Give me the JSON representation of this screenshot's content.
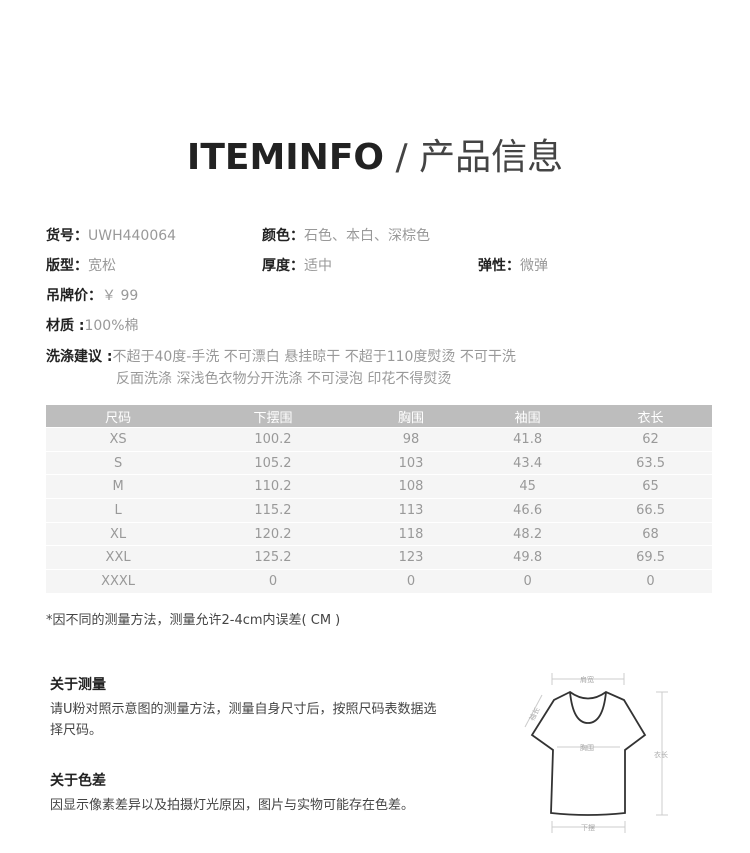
{
  "title": {
    "en": "ITEMINFO",
    "sep": "/",
    "cn": "产品信息"
  },
  "info": {
    "item_no": {
      "label": "货号：",
      "value": "UWH440064"
    },
    "color": {
      "label": "颜色：",
      "value": "石色、本白、深棕色"
    },
    "fit": {
      "label": "版型：",
      "value": "宽松"
    },
    "thickness": {
      "label": "厚度：",
      "value": "适中"
    },
    "elasticity": {
      "label": "弹性：",
      "value": "微弹"
    },
    "price": {
      "label": "吊牌价：",
      "value": "￥ 99"
    },
    "material": {
      "label": "材质 :",
      "value": "100%棉"
    },
    "wash": {
      "label": "洗涤建议 :",
      "line1": "不超于40度-手洗 不可漂白 悬挂晾干 不超于110度熨烫 不可干洗",
      "line2": "反面洗涤 深浅色衣物分开洗涤 不可浸泡 印花不得熨烫"
    }
  },
  "size_table": {
    "headers": [
      "尺码",
      "下摆围",
      "胸围",
      "袖围",
      "衣长"
    ],
    "rows": [
      [
        "XS",
        "100.2",
        "98",
        "41.8",
        "62"
      ],
      [
        "S",
        "105.2",
        "103",
        "43.4",
        "63.5"
      ],
      [
        "M",
        "110.2",
        "108",
        "45",
        "65"
      ],
      [
        "L",
        "115.2",
        "113",
        "46.6",
        "66.5"
      ],
      [
        "XL",
        "120.2",
        "118",
        "48.2",
        "68"
      ],
      [
        "XXL",
        "125.2",
        "123",
        "49.8",
        "69.5"
      ],
      [
        "XXXL",
        "0",
        "0",
        "0",
        "0"
      ]
    ]
  },
  "note": "*因不同的测量方法，测量允许2-4cm内误差( CM )",
  "measure": {
    "title": "关于测量",
    "text1": "请U粉对照示意图的测量方法，测量自身尺寸后，按照尺码表数据选",
    "text2": "择尺码。"
  },
  "color_diff": {
    "title": "关于色差",
    "text": "因显示像素差异以及拍摄灯光原因，图片与实物可能存在色差。"
  },
  "diagram": {
    "shoulder": "肩宽",
    "sleeve": "袖长",
    "chest": "胸围",
    "length": "衣长",
    "hem": "下摆"
  }
}
